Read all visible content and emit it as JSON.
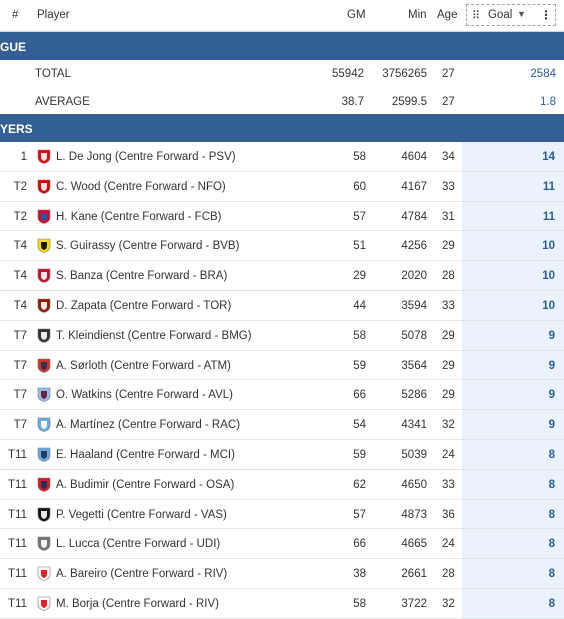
{
  "header": {
    "rank": "#",
    "player": "Player",
    "gm": "GM",
    "min": "Min",
    "age": "Age",
    "goal": "Goal"
  },
  "sections": {
    "league": "GUE",
    "players": "YERS"
  },
  "summary": [
    {
      "label": "TOTAL",
      "gm": "55942",
      "min": "3756265",
      "age": "27",
      "goal": "2584"
    },
    {
      "label": "AVERAGE",
      "gm": "38.7",
      "min": "2599.5",
      "age": "27",
      "goal": "1.8"
    }
  ],
  "players": [
    {
      "rank": "1",
      "name": "L. De Jong (Centre Forward - PSV)",
      "gm": "58",
      "min": "4604",
      "age": "34",
      "goal": "14",
      "club_color": "#e30613",
      "club_color2": "#ffffff"
    },
    {
      "rank": "T2",
      "name": "C. Wood (Centre Forward - NFO)",
      "gm": "60",
      "min": "4167",
      "age": "33",
      "goal": "11",
      "club_color": "#dd0000",
      "club_color2": "#ffffff"
    },
    {
      "rank": "T2",
      "name": "H. Kane (Centre Forward - FCB)",
      "gm": "57",
      "min": "4784",
      "age": "31",
      "goal": "11",
      "club_color": "#dc052d",
      "club_color2": "#0066b2"
    },
    {
      "rank": "T4",
      "name": "S. Guirassy (Centre Forward - BVB)",
      "gm": "51",
      "min": "4256",
      "age": "29",
      "goal": "10",
      "club_color": "#fde100",
      "club_color2": "#000000"
    },
    {
      "rank": "T4",
      "name": "S. Banza (Centre Forward - BRA)",
      "gm": "29",
      "min": "2020",
      "age": "28",
      "goal": "10",
      "club_color": "#c8102e",
      "club_color2": "#ffffff"
    },
    {
      "rank": "T4",
      "name": "D. Zapata (Centre Forward - TOR)",
      "gm": "44",
      "min": "3594",
      "age": "33",
      "goal": "10",
      "club_color": "#8a1e03",
      "club_color2": "#ffffff"
    },
    {
      "rank": "T7",
      "name": "T. Kleindienst (Centre Forward - BMG)",
      "gm": "58",
      "min": "5078",
      "age": "29",
      "goal": "9",
      "club_color": "#333333",
      "club_color2": "#ffffff"
    },
    {
      "rank": "T7",
      "name": "A. Sørloth (Centre Forward - ATM)",
      "gm": "59",
      "min": "3564",
      "age": "29",
      "goal": "9",
      "club_color": "#cb3524",
      "club_color2": "#272e61"
    },
    {
      "rank": "T7",
      "name": "O. Watkins (Centre Forward - AVL)",
      "gm": "66",
      "min": "5286",
      "age": "29",
      "goal": "9",
      "club_color": "#95bfe5",
      "club_color2": "#670e36"
    },
    {
      "rank": "T7",
      "name": "A. Martínez (Centre Forward - RAC)",
      "gm": "54",
      "min": "4341",
      "age": "32",
      "goal": "9",
      "club_color": "#6cace4",
      "club_color2": "#ffffff"
    },
    {
      "rank": "T11",
      "name": "E. Haaland (Centre Forward - MCI)",
      "gm": "59",
      "min": "5039",
      "age": "24",
      "goal": "8",
      "club_color": "#6cabdd",
      "club_color2": "#1c2c5b"
    },
    {
      "rank": "T11",
      "name": "A. Budimir (Centre Forward - OSA)",
      "gm": "62",
      "min": "4650",
      "age": "33",
      "goal": "8",
      "club_color": "#d91a21",
      "club_color2": "#0a346f"
    },
    {
      "rank": "T11",
      "name": "P. Vegetti (Centre Forward - VAS)",
      "gm": "57",
      "min": "4873",
      "age": "36",
      "goal": "8",
      "club_color": "#111111",
      "club_color2": "#ffffff"
    },
    {
      "rank": "T11",
      "name": "L. Lucca (Centre Forward - UDI)",
      "gm": "66",
      "min": "4665",
      "age": "24",
      "goal": "8",
      "club_color": "#777777",
      "club_color2": "#ffffff"
    },
    {
      "rank": "T11",
      "name": "A. Bareiro (Centre Forward - RIV)",
      "gm": "38",
      "min": "2661",
      "age": "28",
      "goal": "8",
      "club_color": "#ffffff",
      "club_color2": "#e30613"
    },
    {
      "rank": "T11",
      "name": "M. Borja (Centre Forward - RIV)",
      "gm": "58",
      "min": "3722",
      "age": "32",
      "goal": "8",
      "club_color": "#ffffff",
      "club_color2": "#e30613"
    }
  ]
}
